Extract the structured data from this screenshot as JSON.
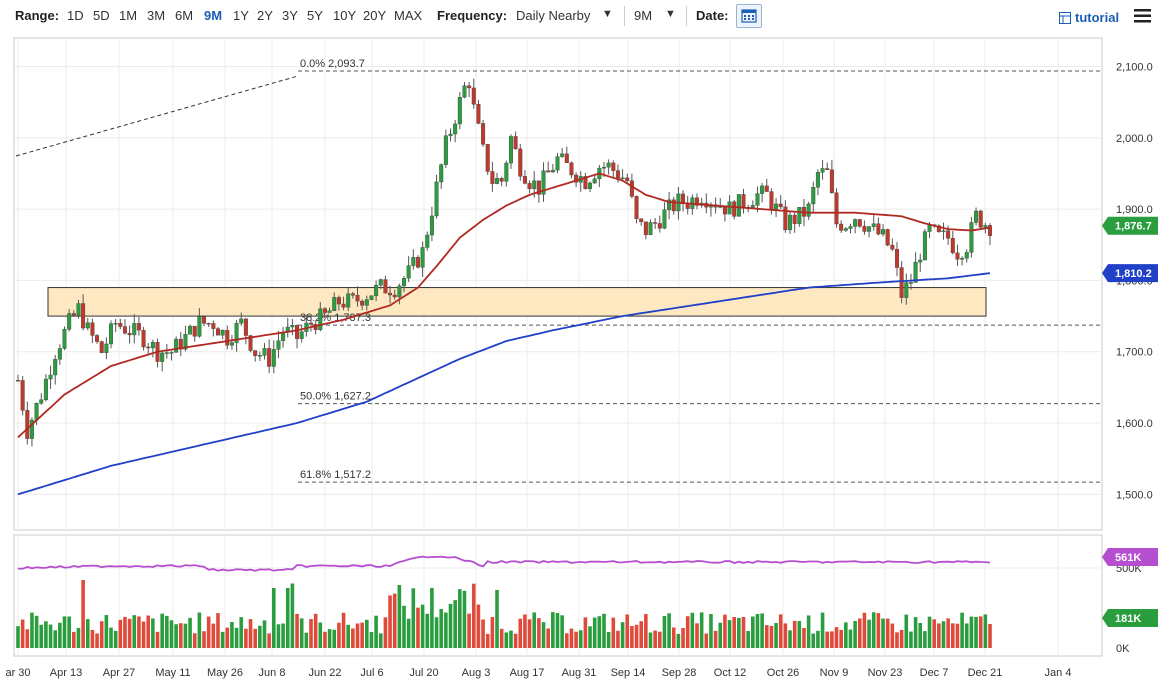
{
  "toolbar": {
    "range_label": "Range:",
    "ranges": [
      "1D",
      "5D",
      "1M",
      "3M",
      "6M",
      "9M",
      "1Y",
      "2Y",
      "3Y",
      "5Y",
      "10Y",
      "20Y",
      "MAX"
    ],
    "active_range": "9M",
    "frequency_label": "Frequency:",
    "frequency_value": "Daily Nearby",
    "period_value": "9M",
    "date_label": "Date:",
    "tutorial_label": "tutorial",
    "icons": [
      "calendar-icon",
      "tutorial-icon",
      "menu-icon",
      "chevron-down-icon"
    ]
  },
  "chart_data": {
    "type": "candlestick",
    "x_ticks": [
      "ar 30",
      "Apr 13",
      "Apr 27",
      "May 11",
      "May 26",
      "Jun 8",
      "Jun 22",
      "Jul 6",
      "Jul 20",
      "Aug 3",
      "Aug 17",
      "Aug 31",
      "Sep 14",
      "Sep 28",
      "Oct 12",
      "Oct 26",
      "Nov 9",
      "Nov 23",
      "Dec 7",
      "Dec 21",
      "Jan 4"
    ],
    "price_axis": {
      "ticks": [
        "1,500.0",
        "1,600.0",
        "1,700.0",
        "1,800.0",
        "1,900.0",
        "2,000.0",
        "2,100.0"
      ],
      "ylim": [
        1450,
        2140
      ]
    },
    "volume_axis": {
      "ticks": [
        "0K",
        "500K"
      ]
    },
    "price_points": [
      [
        0,
        1660
      ],
      [
        2,
        1590
      ],
      [
        5,
        1640
      ],
      [
        8,
        1700
      ],
      [
        11,
        1740
      ],
      [
        13,
        1760
      ],
      [
        15,
        1730
      ],
      [
        18,
        1700
      ],
      [
        21,
        1740
      ],
      [
        24,
        1730
      ],
      [
        27,
        1720
      ],
      [
        30,
        1700
      ],
      [
        33,
        1700
      ],
      [
        36,
        1720
      ],
      [
        39,
        1740
      ],
      [
        42,
        1740
      ],
      [
        45,
        1720
      ],
      [
        48,
        1740
      ],
      [
        51,
        1700
      ],
      [
        54,
        1690
      ],
      [
        57,
        1730
      ],
      [
        60,
        1720
      ],
      [
        63,
        1740
      ],
      [
        66,
        1750
      ],
      [
        69,
        1770
      ],
      [
        72,
        1770
      ],
      [
        75,
        1780
      ],
      [
        78,
        1790
      ],
      [
        81,
        1790
      ],
      [
        84,
        1810
      ],
      [
        87,
        1840
      ],
      [
        90,
        1930
      ],
      [
        92,
        1990
      ],
      [
        94,
        2030
      ],
      [
        96,
        2070
      ],
      [
        97,
        2080
      ],
      [
        98,
        2040
      ],
      [
        100,
        1980
      ],
      [
        102,
        1940
      ],
      [
        104,
        1940
      ],
      [
        106,
        2000
      ],
      [
        108,
        1960
      ],
      [
        110,
        1940
      ],
      [
        112,
        1930
      ],
      [
        114,
        1950
      ],
      [
        116,
        1970
      ],
      [
        118,
        1960
      ],
      [
        120,
        1950
      ],
      [
        122,
        1940
      ],
      [
        125,
        1960
      ],
      [
        127,
        1960
      ],
      [
        129,
        1950
      ],
      [
        131,
        1940
      ],
      [
        133,
        1880
      ],
      [
        135,
        1870
      ],
      [
        137,
        1880
      ],
      [
        140,
        1900
      ],
      [
        142,
        1910
      ],
      [
        144,
        1910
      ],
      [
        147,
        1920
      ],
      [
        150,
        1910
      ],
      [
        153,
        1900
      ],
      [
        156,
        1910
      ],
      [
        159,
        1920
      ],
      [
        161,
        1920
      ],
      [
        163,
        1900
      ],
      [
        165,
        1880
      ],
      [
        168,
        1890
      ],
      [
        170,
        1900
      ],
      [
        172,
        1950
      ],
      [
        174,
        1950
      ],
      [
        176,
        1880
      ],
      [
        178,
        1880
      ],
      [
        180,
        1890
      ],
      [
        182,
        1880
      ],
      [
        184,
        1870
      ],
      [
        186,
        1860
      ],
      [
        188,
        1840
      ],
      [
        190,
        1780
      ],
      [
        192,
        1800
      ],
      [
        194,
        1840
      ],
      [
        196,
        1870
      ],
      [
        198,
        1860
      ],
      [
        200,
        1860
      ],
      [
        202,
        1840
      ],
      [
        204,
        1850
      ],
      [
        206,
        1890
      ],
      [
        208,
        1880
      ],
      [
        209,
        1876.7
      ]
    ],
    "series": [
      {
        "name": "",
        "label": "1,876.7",
        "color": "#2a9d3f",
        "last_value": 1876.7
      },
      {
        "name": "",
        "label": "1,810.2",
        "color": "#2040c8",
        "last_value": 1810.2
      },
      {
        "name": "",
        "color": "#b02a22"
      },
      {
        "name": "",
        "label": "561K",
        "color": "#b54fd0",
        "last_value": "561K"
      },
      {
        "name": "",
        "label": "181K",
        "color": "#2a9d3f",
        "last_value": "181K"
      }
    ],
    "ma50": [
      [
        0,
        1580
      ],
      [
        10,
        1640
      ],
      [
        20,
        1680
      ],
      [
        30,
        1700
      ],
      [
        40,
        1710
      ],
      [
        50,
        1720
      ],
      [
        60,
        1730
      ],
      [
        70,
        1745
      ],
      [
        80,
        1765
      ],
      [
        86,
        1790
      ],
      [
        90,
        1820
      ],
      [
        95,
        1860
      ],
      [
        100,
        1885
      ],
      [
        105,
        1905
      ],
      [
        110,
        1920
      ],
      [
        115,
        1930
      ],
      [
        120,
        1940
      ],
      [
        125,
        1950
      ],
      [
        130,
        1940
      ],
      [
        135,
        1920
      ],
      [
        140,
        1910
      ],
      [
        150,
        1905
      ],
      [
        160,
        1900
      ],
      [
        170,
        1895
      ],
      [
        180,
        1895
      ],
      [
        190,
        1890
      ],
      [
        195,
        1880
      ],
      [
        200,
        1872
      ],
      [
        205,
        1870
      ],
      [
        209,
        1874
      ]
    ],
    "ma200": [
      [
        0,
        1500
      ],
      [
        20,
        1540
      ],
      [
        40,
        1570
      ],
      [
        60,
        1600
      ],
      [
        75,
        1630
      ],
      [
        85,
        1660
      ],
      [
        95,
        1690
      ],
      [
        105,
        1715
      ],
      [
        115,
        1730
      ],
      [
        130,
        1750
      ],
      [
        150,
        1770
      ],
      [
        170,
        1790
      ],
      [
        185,
        1797
      ],
      [
        200,
        1803
      ],
      [
        209,
        1810.2
      ]
    ],
    "fibonacci": [
      {
        "label": "0.0% 2,093.7",
        "value": 2093.7
      },
      {
        "label": "38.2% 1,737.3",
        "value": 1737.3
      },
      {
        "label": "50.0% 1,627.2",
        "value": 1627.2
      },
      {
        "label": "61.8% 1,517.2",
        "value": 1517.2
      }
    ],
    "support_zone": {
      "low": 1750,
      "high": 1790
    },
    "grid": true
  }
}
